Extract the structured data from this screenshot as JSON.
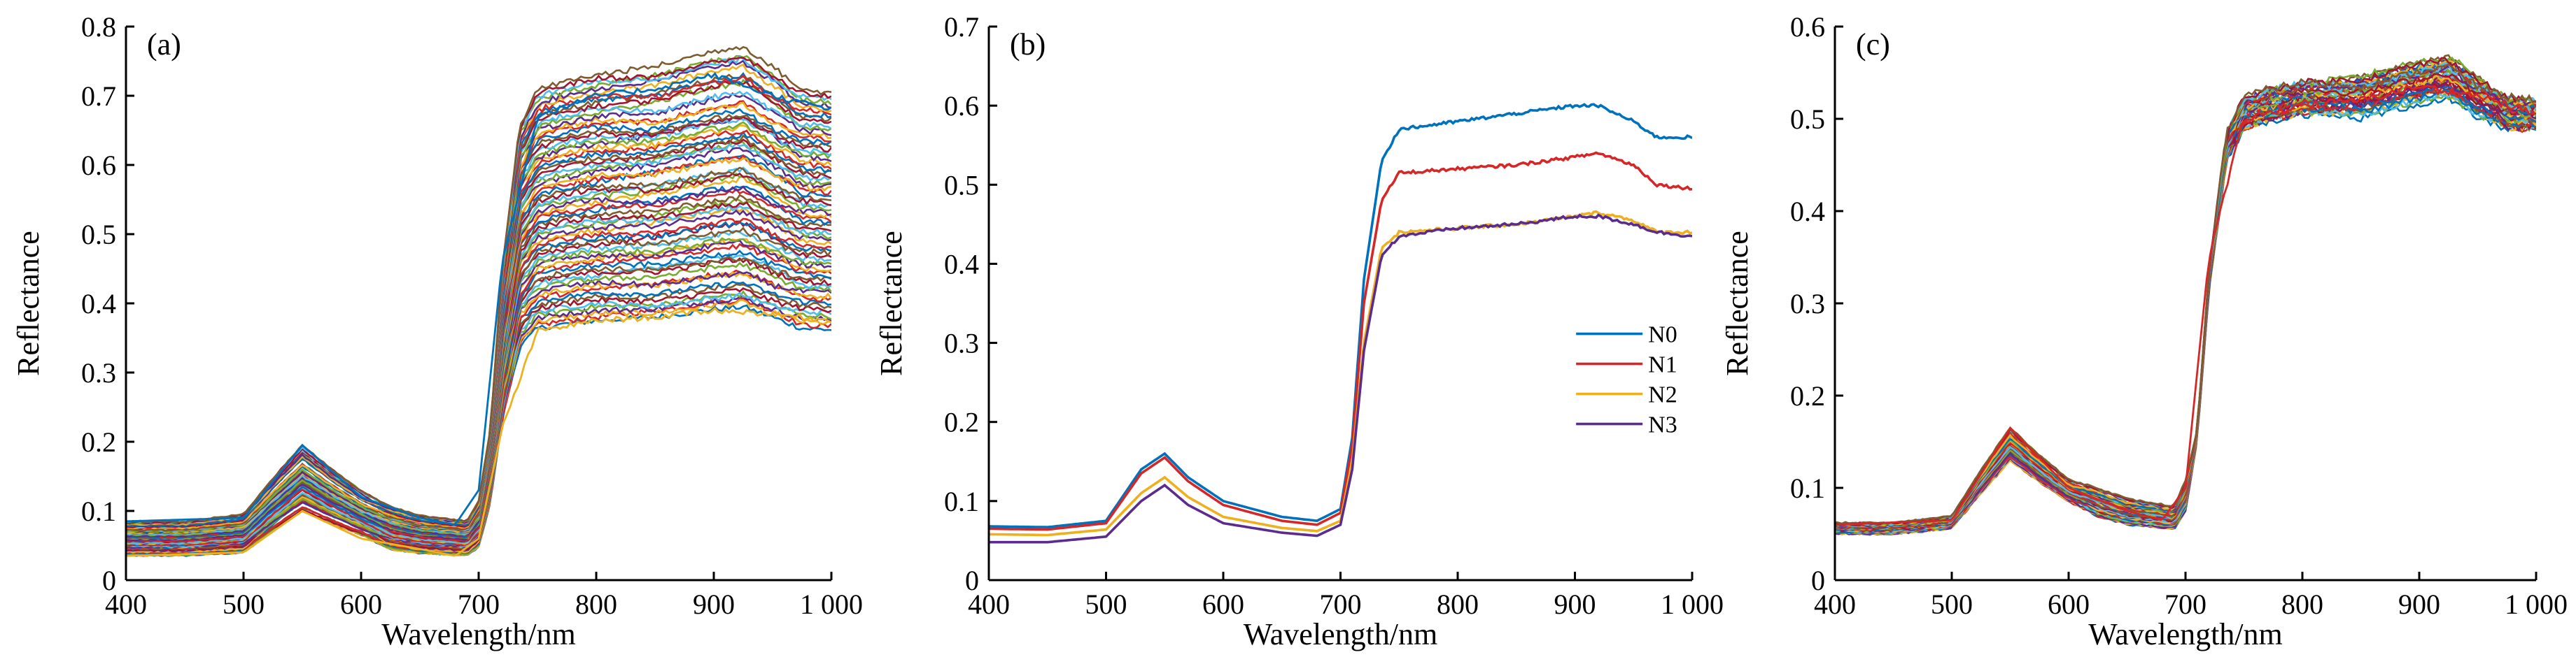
{
  "chart_data": [
    {
      "type": "line",
      "panel_label": "(a)",
      "xlabel": "Wavelength/nm",
      "ylabel": "Reflectance",
      "xlim": [
        400,
        1000
      ],
      "ylim": [
        0,
        0.8
      ],
      "xticks": [
        400,
        500,
        600,
        700,
        800,
        900,
        1000
      ],
      "xtick_labels": [
        "400",
        "500",
        "600",
        "700",
        "800",
        "900",
        "1 000"
      ],
      "yticks": [
        0,
        0.1,
        0.2,
        0.3,
        0.4,
        0.5,
        0.6,
        0.7,
        0.8
      ],
      "ytick_labels": [
        "0",
        "0.1",
        "0.2",
        "0.3",
        "0.4",
        "0.5",
        "0.6",
        "0.7",
        "0.8"
      ],
      "grid": false,
      "legend": null,
      "spectra": {
        "count": 72,
        "blue_range": [
          0.035,
          0.085
        ],
        "green_peak_range": [
          0.1,
          0.195
        ],
        "red_trough_range": [
          0.035,
          0.085
        ],
        "nir_plateau_range": [
          0.375,
          0.73
        ]
      },
      "series": [
        {
          "color": "#0072BD",
          "x": [
            400,
            500,
            550,
            600,
            650,
            680,
            700,
            720,
            750,
            800,
            850,
            900,
            950,
            1000
          ],
          "y": [
            0.085,
            0.09,
            0.195,
            0.12,
            0.09,
            0.08,
            0.13,
            0.46,
            0.67,
            0.7,
            0.71,
            0.73,
            0.7,
            0.68
          ]
        },
        {
          "color": "#EDB120",
          "x": [
            400,
            500,
            550,
            600,
            650,
            680,
            700,
            720,
            750,
            800,
            850,
            900,
            950,
            1000
          ],
          "y": [
            0.035,
            0.04,
            0.1,
            0.06,
            0.045,
            0.035,
            0.06,
            0.22,
            0.36,
            0.375,
            0.38,
            0.39,
            0.385,
            0.375
          ]
        }
      ]
    },
    {
      "type": "line",
      "panel_label": "(b)",
      "xlabel": "Wavelength/nm",
      "ylabel": "Reflectance",
      "xlim": [
        400,
        1000
      ],
      "ylim": [
        0,
        0.7
      ],
      "xticks": [
        400,
        500,
        600,
        700,
        800,
        900,
        1000
      ],
      "xtick_labels": [
        "400",
        "500",
        "600",
        "700",
        "800",
        "900",
        "1 000"
      ],
      "yticks": [
        0,
        0.1,
        0.2,
        0.3,
        0.4,
        0.5,
        0.6,
        0.7
      ],
      "ytick_labels": [
        "0",
        "0.1",
        "0.2",
        "0.3",
        "0.4",
        "0.5",
        "0.6",
        "0.7"
      ],
      "grid": false,
      "legend": "center-right",
      "series": [
        {
          "name": "N0",
          "color": "#0072BD",
          "x": [
            400,
            450,
            500,
            530,
            550,
            570,
            600,
            650,
            680,
            700,
            710,
            720,
            735,
            750,
            800,
            850,
            900,
            920,
            950,
            970,
            1000
          ],
          "y": [
            0.068,
            0.067,
            0.075,
            0.14,
            0.16,
            0.13,
            0.1,
            0.08,
            0.075,
            0.09,
            0.18,
            0.38,
            0.53,
            0.57,
            0.58,
            0.59,
            0.6,
            0.6,
            0.58,
            0.56,
            0.56
          ]
        },
        {
          "name": "N1",
          "color": "#D62728",
          "x": [
            400,
            450,
            500,
            530,
            550,
            570,
            600,
            650,
            680,
            700,
            710,
            720,
            735,
            750,
            800,
            850,
            900,
            920,
            950,
            970,
            1000
          ],
          "y": [
            0.065,
            0.064,
            0.072,
            0.135,
            0.155,
            0.125,
            0.095,
            0.075,
            0.07,
            0.085,
            0.17,
            0.35,
            0.48,
            0.515,
            0.52,
            0.525,
            0.535,
            0.54,
            0.525,
            0.5,
            0.495
          ]
        },
        {
          "name": "N2",
          "color": "#EDB120",
          "x": [
            400,
            450,
            500,
            530,
            550,
            570,
            600,
            650,
            680,
            700,
            710,
            720,
            735,
            750,
            800,
            850,
            900,
            920,
            950,
            970,
            1000
          ],
          "y": [
            0.058,
            0.057,
            0.064,
            0.11,
            0.13,
            0.105,
            0.08,
            0.066,
            0.062,
            0.075,
            0.15,
            0.3,
            0.42,
            0.44,
            0.445,
            0.45,
            0.46,
            0.465,
            0.455,
            0.44,
            0.44
          ]
        },
        {
          "name": "N3",
          "color": "#5B2C8E",
          "x": [
            400,
            450,
            500,
            530,
            550,
            570,
            600,
            650,
            680,
            700,
            710,
            720,
            735,
            750,
            800,
            850,
            900,
            920,
            950,
            970,
            1000
          ],
          "y": [
            0.048,
            0.048,
            0.055,
            0.1,
            0.12,
            0.095,
            0.072,
            0.06,
            0.056,
            0.07,
            0.14,
            0.29,
            0.41,
            0.435,
            0.445,
            0.45,
            0.46,
            0.46,
            0.45,
            0.44,
            0.435
          ]
        }
      ]
    },
    {
      "type": "line",
      "panel_label": "(c)",
      "xlabel": "Wavelength/nm",
      "ylabel": "Reflectance",
      "xlim": [
        400,
        1000
      ],
      "ylim": [
        0,
        0.6
      ],
      "xticks": [
        400,
        500,
        600,
        700,
        800,
        900,
        1000
      ],
      "xtick_labels": [
        "400",
        "500",
        "600",
        "700",
        "800",
        "900",
        "1 000"
      ],
      "yticks": [
        0,
        0.1,
        0.2,
        0.3,
        0.4,
        0.5,
        0.6
      ],
      "ytick_labels": [
        "0",
        "0.1",
        "0.2",
        "0.3",
        "0.4",
        "0.5",
        "0.6"
      ],
      "grid": false,
      "legend": null,
      "spectra": {
        "count": 40,
        "blue_range": [
          0.05,
          0.062
        ],
        "green_peak_range": [
          0.13,
          0.165
        ],
        "red_trough_range": [
          0.055,
          0.08
        ],
        "nir_plateau_range": [
          0.505,
          0.54
        ]
      },
      "series": [
        {
          "color": "#D62728",
          "x": [
            400,
            500,
            550,
            600,
            650,
            680,
            700,
            720,
            750,
            800,
            850,
            900,
            950,
            1000
          ],
          "y": [
            0.06,
            0.065,
            0.165,
            0.1,
            0.075,
            0.065,
            0.1,
            0.35,
            0.5,
            0.515,
            0.52,
            0.535,
            0.525,
            0.505
          ]
        }
      ]
    }
  ],
  "palette": [
    "#0072BD",
    "#D62728",
    "#EDB120",
    "#5B2C8E",
    "#77AC30",
    "#4DBEEE",
    "#A2142F",
    "#7E5C2F"
  ]
}
